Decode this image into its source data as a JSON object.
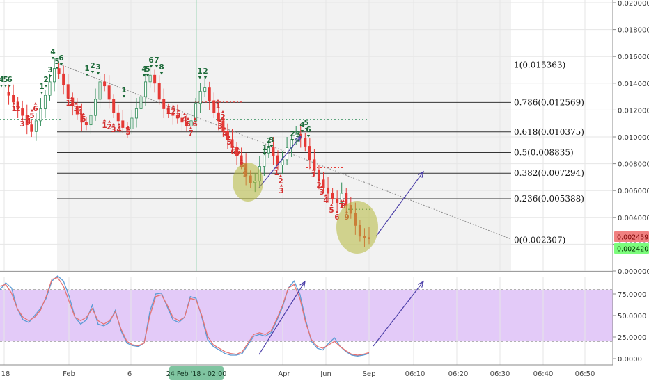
{
  "chart_data": [
    {
      "type": "candlestick",
      "title": "",
      "ylim": [
        0,
        0.02
      ],
      "yticks": [
        "0.020000",
        "0.018000",
        "0.016000",
        "0.014000",
        "0.012000",
        "0.010000",
        "0.008000",
        "0.006000",
        "0.004000",
        "0.002000",
        "0.000000"
      ],
      "last_price_badges": [
        {
          "value": 0.002459,
          "label": "0.002459",
          "color": "#f08080"
        },
        {
          "value": 0.00242,
          "label": "0.002420",
          "color": "#7cfc7c"
        }
      ],
      "fib_levels": [
        {
          "ratio": "1",
          "value": 0.015363,
          "label": "1(0.015363)"
        },
        {
          "ratio": "0.786",
          "value": 0.012569,
          "label": "0.786(0.012569)"
        },
        {
          "ratio": "0.618",
          "value": 0.010375,
          "label": "0.618(0.010375)"
        },
        {
          "ratio": "0.5",
          "value": 0.008835,
          "label": "0.5(0.008835)"
        },
        {
          "ratio": "0.382",
          "value": 0.007294,
          "label": "0.382(0.007294)"
        },
        {
          "ratio": "0.236",
          "value": 0.005388,
          "label": "0.236(0.005388)"
        },
        {
          "ratio": "0",
          "value": 0.002307,
          "label": "0(0.002307)"
        }
      ],
      "price_path": [
        0.0133,
        0.0131,
        0.0126,
        0.0121,
        0.0116,
        0.0109,
        0.0104,
        0.0112,
        0.0121,
        0.0131,
        0.0141,
        0.0151,
        0.0147,
        0.0139,
        0.0129,
        0.0123,
        0.0117,
        0.0111,
        0.0109,
        0.0116,
        0.0128,
        0.0141,
        0.0138,
        0.0128,
        0.0118,
        0.0112,
        0.0107,
        0.0106,
        0.0114,
        0.0121,
        0.013,
        0.0141,
        0.0146,
        0.014,
        0.0128,
        0.0121,
        0.0118,
        0.0116,
        0.0114,
        0.0111,
        0.0108,
        0.0112,
        0.0125,
        0.0134,
        0.0137,
        0.0127,
        0.0118,
        0.0112,
        0.0104,
        0.0098,
        0.0092,
        0.0086,
        0.008,
        0.0071,
        0.0066,
        0.0067,
        0.0078,
        0.0088,
        0.0092,
        0.0086,
        0.0079,
        0.0083,
        0.0092,
        0.0098,
        0.0102,
        0.0099,
        0.0093,
        0.0083,
        0.0075,
        0.0068,
        0.0062,
        0.0058,
        0.0054,
        0.0051,
        0.0058,
        0.0049,
        0.0043,
        0.0034,
        0.0026,
        0.0025,
        0.0024
      ]
    },
    {
      "type": "line",
      "title": "",
      "ylim": [
        0,
        100
      ],
      "yticks": [
        "75.0000",
        "50.0000",
        "25.0000",
        "0.0000"
      ],
      "band": [
        20,
        80
      ],
      "series": [
        {
          "color": "#5b9bd5",
          "values": [
            80,
            88,
            82,
            58,
            45,
            42,
            50,
            58,
            70,
            90,
            96,
            90,
            72,
            48,
            40,
            45,
            62,
            40,
            38,
            42,
            56,
            32,
            18,
            15,
            14,
            18,
            55,
            75,
            76,
            60,
            45,
            42,
            48,
            72,
            70,
            48,
            22,
            14,
            10,
            6,
            4,
            4,
            6,
            16,
            26,
            28,
            26,
            30,
            44,
            60,
            82,
            90,
            75,
            45,
            20,
            12,
            10,
            18,
            24,
            14,
            8,
            4,
            3,
            4,
            6
          ]
        },
        {
          "color": "#e57373",
          "values": [
            84,
            86,
            76,
            58,
            48,
            44,
            48,
            56,
            72,
            92,
            94,
            84,
            66,
            48,
            44,
            48,
            58,
            44,
            40,
            44,
            54,
            34,
            20,
            16,
            15,
            18,
            50,
            72,
            74,
            62,
            48,
            44,
            48,
            70,
            68,
            50,
            26,
            16,
            12,
            8,
            6,
            5,
            8,
            18,
            28,
            30,
            28,
            32,
            46,
            62,
            82,
            86,
            70,
            42,
            22,
            14,
            12,
            16,
            20,
            14,
            9,
            5,
            4,
            5,
            7
          ]
        }
      ]
    }
  ],
  "x_axis": {
    "ticks": [
      "18",
      "Feb",
      "6",
      "Apr",
      "Jun",
      "Sep",
      "06:10",
      "06:20",
      "06:30",
      "06:40",
      "06:50"
    ],
    "cursor_label": "24 Feb '18 - 02:00"
  },
  "td_markers": [
    {
      "t": "4",
      "c": "green"
    },
    {
      "t": "5",
      "c": "green"
    },
    {
      "t": "6",
      "c": "green"
    },
    {
      "t": "1",
      "c": "red"
    },
    {
      "t": "2",
      "c": "red"
    },
    {
      "t": "3",
      "c": "red"
    },
    {
      "t": "4",
      "c": "red"
    },
    {
      "t": "5",
      "c": "red"
    },
    {
      "t": "6",
      "c": "red"
    },
    {
      "t": "1",
      "c": "green"
    },
    {
      "t": "2",
      "c": "green"
    },
    {
      "t": "3",
      "c": "green"
    },
    {
      "t": "4",
      "c": "green"
    },
    {
      "t": "5",
      "c": "green"
    },
    {
      "t": "6",
      "c": "green"
    },
    {
      "t": "1",
      "c": "red"
    },
    {
      "t": "2",
      "c": "red"
    },
    {
      "t": "3",
      "c": "red"
    },
    {
      "t": "4",
      "c": "red"
    },
    {
      "t": "5",
      "c": "red"
    },
    {
      "t": "1",
      "c": "green"
    },
    {
      "t": "2",
      "c": "green"
    },
    {
      "t": "3",
      "c": "green"
    },
    {
      "t": "1",
      "c": "red"
    },
    {
      "t": "2",
      "c": "red"
    },
    {
      "t": "3",
      "c": "red"
    },
    {
      "t": "4",
      "c": "red"
    },
    {
      "t": "5",
      "c": "red"
    },
    {
      "t": "1",
      "c": "green"
    },
    {
      "t": "4",
      "c": "green"
    },
    {
      "t": "5",
      "c": "green"
    },
    {
      "t": "6",
      "c": "green"
    },
    {
      "t": "7",
      "c": "green"
    },
    {
      "t": "8",
      "c": "green"
    },
    {
      "t": "1",
      "c": "red"
    },
    {
      "t": "2",
      "c": "red"
    },
    {
      "t": "3",
      "c": "red"
    },
    {
      "t": "4",
      "c": "red"
    },
    {
      "t": "5",
      "c": "red"
    },
    {
      "t": "6",
      "c": "red"
    },
    {
      "t": "7",
      "c": "red"
    },
    {
      "t": "1",
      "c": "green"
    },
    {
      "t": "2",
      "c": "green"
    },
    {
      "t": "1",
      "c": "red"
    },
    {
      "t": "2",
      "c": "red"
    },
    {
      "t": "3",
      "c": "red"
    },
    {
      "t": "4",
      "c": "red"
    },
    {
      "t": "5",
      "c": "red"
    },
    {
      "t": "6",
      "c": "red"
    },
    {
      "t": "7",
      "c": "red"
    },
    {
      "t": "8",
      "c": "red"
    },
    {
      "t": "9",
      "c": "red"
    },
    {
      "t": "1",
      "c": "green"
    },
    {
      "t": "2",
      "c": "green"
    },
    {
      "t": "3",
      "c": "green"
    },
    {
      "t": "1",
      "c": "red"
    },
    {
      "t": "2",
      "c": "red"
    },
    {
      "t": "3",
      "c": "red"
    },
    {
      "t": "1",
      "c": "green"
    },
    {
      "t": "2",
      "c": "green"
    },
    {
      "t": "3",
      "c": "green"
    },
    {
      "t": "4",
      "c": "green"
    },
    {
      "t": "5",
      "c": "green"
    },
    {
      "t": "6",
      "c": "green"
    },
    {
      "t": "1",
      "c": "red"
    },
    {
      "t": "2",
      "c": "red"
    },
    {
      "t": "3",
      "c": "red"
    },
    {
      "t": "4",
      "c": "red"
    },
    {
      "t": "5",
      "c": "red"
    },
    {
      "t": "6",
      "c": "red"
    },
    {
      "t": "7",
      "c": "red"
    },
    {
      "t": "8",
      "c": "red"
    },
    {
      "t": "9",
      "c": "red"
    }
  ],
  "colors": {
    "bull": "#2e8b57",
    "bear": "#e53935",
    "fib_line": "#333333",
    "trendline": "#888888",
    "arrow": "#4b3fa8",
    "highlight": "#b5b83a",
    "stoch_band": "#d9b8f5",
    "grid": "#e6e6e6",
    "plot_bg": "#f2f2f2"
  }
}
